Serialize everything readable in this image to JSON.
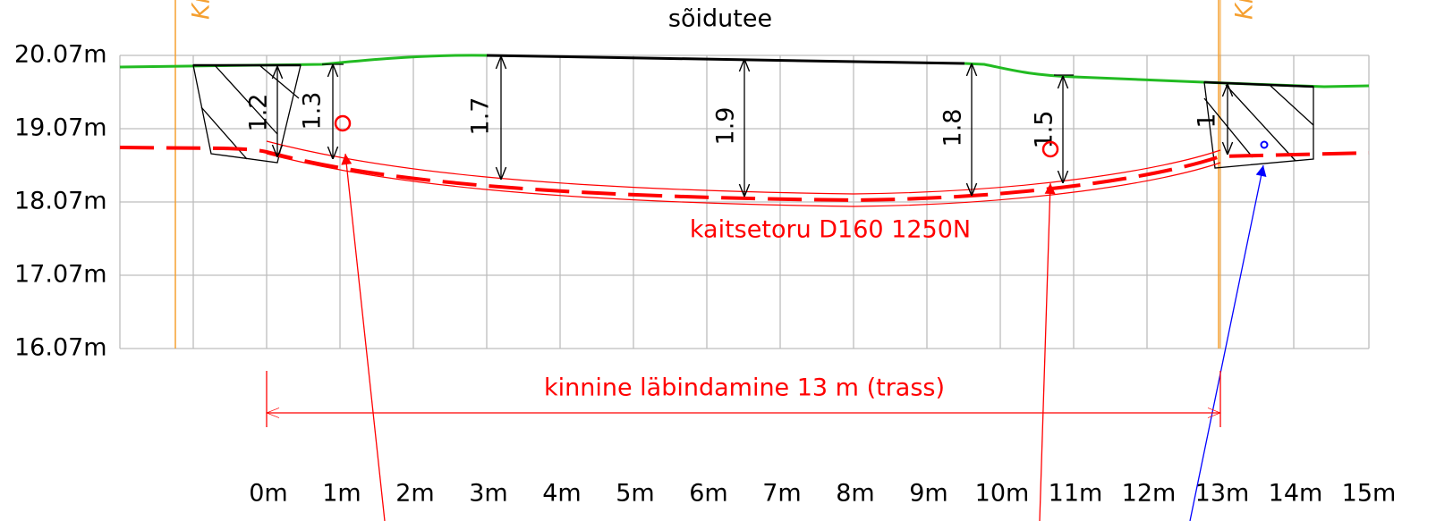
{
  "header": {
    "title": "sõidutee"
  },
  "y_labels": [
    "20.07m",
    "19.07m",
    "18.07m",
    "17.07m",
    "16.07m"
  ],
  "x_labels": [
    "0m",
    "1m",
    "2m",
    "3m",
    "4m",
    "5m",
    "6m",
    "7m",
    "8m",
    "9m",
    "10m",
    "11m",
    "12m",
    "13m",
    "14m",
    "15m"
  ],
  "depths": [
    "1.2",
    "1.3",
    "1.7",
    "1.9",
    "1.8",
    "1.5",
    "1"
  ],
  "pipe_label": "kaitsetoru D160 1250N",
  "dimension_label": "kinnine läbindamine 13 m (trass)",
  "boundary_labels": [
    "Kin",
    "Kin"
  ]
}
